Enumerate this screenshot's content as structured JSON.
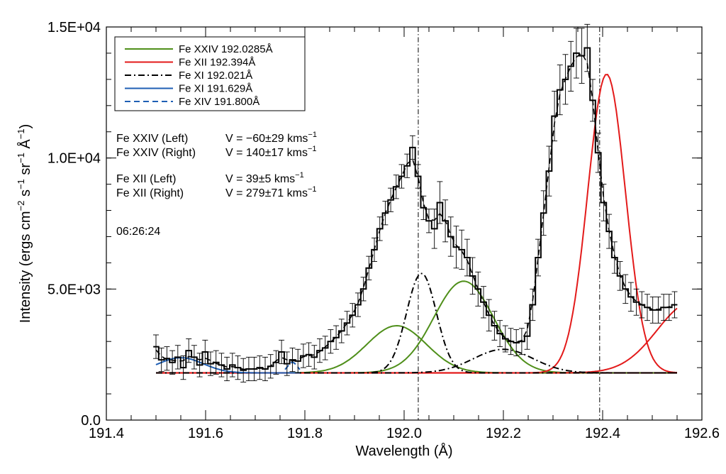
{
  "chart_data": {
    "type": "line",
    "title": "",
    "xlabel": "Wavelength (Å)",
    "ylabel_parts": [
      "Intensity (ergs cm",
      "−2",
      " s",
      "−1",
      " sr",
      "−1",
      " Å",
      "−1",
      ")"
    ],
    "xlim": [
      191.4,
      192.6
    ],
    "ylim": [
      0,
      15000
    ],
    "xticks": [
      191.4,
      191.6,
      191.8,
      192.0,
      192.2,
      192.4,
      192.6
    ],
    "xtick_labels": [
      "191.4",
      "191.6",
      "191.8",
      "192.0",
      "192.2",
      "192.4",
      "192.6"
    ],
    "yticks": [
      0,
      5000,
      10000,
      15000
    ],
    "ytick_labels": [
      "0.0",
      "5.0E+03",
      "1.0E+04",
      "1.5E+04"
    ],
    "grid": false,
    "legend_position": "top-left",
    "reference_lines": [
      192.0285,
      192.394
    ],
    "annotations": [
      {
        "name": "Fe XXIV (Left)",
        "value": "V = −60±29 kms",
        "sup": "−1"
      },
      {
        "name": "Fe XXIV (Right)",
        "value": "V = 140±17 kms",
        "sup": "−1"
      },
      {
        "name": "Fe XII (Left)",
        "value": "V = 39±5 kms",
        "sup": "−1"
      },
      {
        "name": "Fe XII (Right)",
        "value": "V = 279±71 kms",
        "sup": "−1"
      }
    ],
    "time_label": "06:26:24",
    "observed": {
      "x": [
        191.5,
        191.511,
        191.522,
        191.533,
        191.544,
        191.555,
        191.566,
        191.577,
        191.588,
        191.599,
        191.61,
        191.621,
        191.632,
        191.643,
        191.654,
        191.665,
        191.676,
        191.687,
        191.698,
        191.709,
        191.72,
        191.731,
        191.742,
        191.753,
        191.764,
        191.775,
        191.786,
        191.797,
        191.808,
        191.819,
        191.83,
        191.841,
        191.852,
        191.863,
        191.874,
        191.885,
        191.896,
        191.907,
        191.918,
        191.929,
        191.94,
        191.951,
        191.962,
        191.973,
        191.984,
        191.995,
        192.006,
        192.017,
        192.028,
        192.039,
        192.05,
        192.061,
        192.072,
        192.083,
        192.094,
        192.105,
        192.116,
        192.127,
        192.138,
        192.149,
        192.16,
        192.171,
        192.182,
        192.193,
        192.204,
        192.215,
        192.226,
        192.237,
        192.248,
        192.259,
        192.27,
        192.281,
        192.292,
        192.303,
        192.314,
        192.325,
        192.336,
        192.347,
        192.358,
        192.369,
        192.38,
        192.391,
        192.402,
        192.413,
        192.424,
        192.435,
        192.446,
        192.457,
        192.468,
        192.479,
        192.49,
        192.501,
        192.512,
        192.523,
        192.534,
        192.545
      ],
      "y": [
        2800,
        2300,
        2350,
        2200,
        2400,
        2000,
        2650,
        2400,
        2100,
        2600,
        2150,
        2200,
        2100,
        1950,
        2100,
        2000,
        1900,
        1950,
        1950,
        2000,
        1950,
        2050,
        2200,
        2600,
        2150,
        2300,
        2250,
        2450,
        2500,
        2400,
        2650,
        2750,
        3000,
        3150,
        3400,
        3700,
        4000,
        4400,
        5000,
        5800,
        6500,
        7300,
        7900,
        8400,
        8900,
        9300,
        9700,
        10400,
        9300,
        8100,
        7600,
        7300,
        8300,
        7600,
        7000,
        6600,
        6500,
        6200,
        5500,
        5000,
        4500,
        4000,
        3600,
        3300,
        3100,
        3000,
        2950,
        3000,
        3200,
        4400,
        6200,
        7900,
        9500,
        11600,
        12600,
        13000,
        13500,
        14000,
        13900,
        14200,
        12200,
        10200,
        8300,
        7200,
        6200,
        5500,
        5000,
        4700,
        4500,
        4400,
        4300,
        4200,
        4200,
        4300,
        4300,
        4400
      ],
      "yerr": [
        450,
        450,
        450,
        450,
        450,
        450,
        450,
        450,
        450,
        450,
        450,
        450,
        450,
        450,
        450,
        450,
        450,
        450,
        450,
        450,
        450,
        450,
        450,
        450,
        450,
        450,
        450,
        450,
        450,
        450,
        450,
        450,
        450,
        450,
        450,
        450,
        450,
        450,
        450,
        450,
        450,
        450,
        450,
        450,
        450,
        450,
        450,
        450,
        450,
        450,
        450,
        750,
        800,
        800,
        750,
        800,
        750,
        700,
        700,
        650,
        600,
        600,
        550,
        500,
        500,
        500,
        500,
        500,
        500,
        600,
        700,
        850,
        950,
        950,
        950,
        950,
        950,
        950,
        1050,
        900,
        800,
        750,
        700,
        650,
        600,
        550,
        550,
        550,
        500,
        500,
        500,
        500,
        500,
        500,
        500,
        500
      ]
    },
    "baseline": 1800,
    "components": [
      {
        "name": "Fe XXIV 192.0285Å",
        "color": "#4f8f1a",
        "dash": "",
        "ranges": [
          {
            "x_range": [
              191.5,
              192.55
            ],
            "amp": 1800,
            "center": 191.985,
            "sigma": 0.06
          },
          {
            "x_range": [
              191.5,
              192.55
            ],
            "amp": 3500,
            "center": 192.12,
            "sigma": 0.06
          }
        ]
      },
      {
        "name": "Fe XII 192.394Å",
        "color": "#e31a1a",
        "dash": "",
        "ranges": [
          {
            "x_range": [
              191.5,
              192.55
            ],
            "amp": 11400,
            "center": 192.408,
            "sigma": 0.038
          },
          {
            "x_range": [
              192.3,
              192.55
            ],
            "amp": 2700,
            "center": 192.58,
            "sigma": 0.07
          }
        ]
      },
      {
        "name": "Fe XI 192.021Å",
        "color": "#000000",
        "dash": "9,4,2,4",
        "ranges": [
          {
            "x_range": [
              191.5,
              192.55
            ],
            "amp": 3800,
            "center": 192.035,
            "sigma": 0.03
          },
          {
            "x_range": [
              191.5,
              192.55
            ],
            "amp": 900,
            "center": 192.2,
            "sigma": 0.06
          }
        ]
      },
      {
        "name": "Fe XI 191.629Å",
        "color": "#1f5fb4",
        "dash": "",
        "ranges": [
          {
            "x_range": [
              191.5,
              191.79
            ],
            "amp": 580,
            "center": 191.55,
            "sigma": 0.045
          }
        ]
      },
      {
        "name": "Fe XIV 191.800Å",
        "color": "#1f5fb4",
        "dash": "8,5",
        "ranges": [
          {
            "x_range": [
              191.76,
              191.79
            ],
            "amp": 400,
            "center": 191.775,
            "sigma": 0.01
          }
        ]
      }
    ],
    "total_fit": {
      "color": "#000000",
      "dash": "8,5"
    }
  }
}
